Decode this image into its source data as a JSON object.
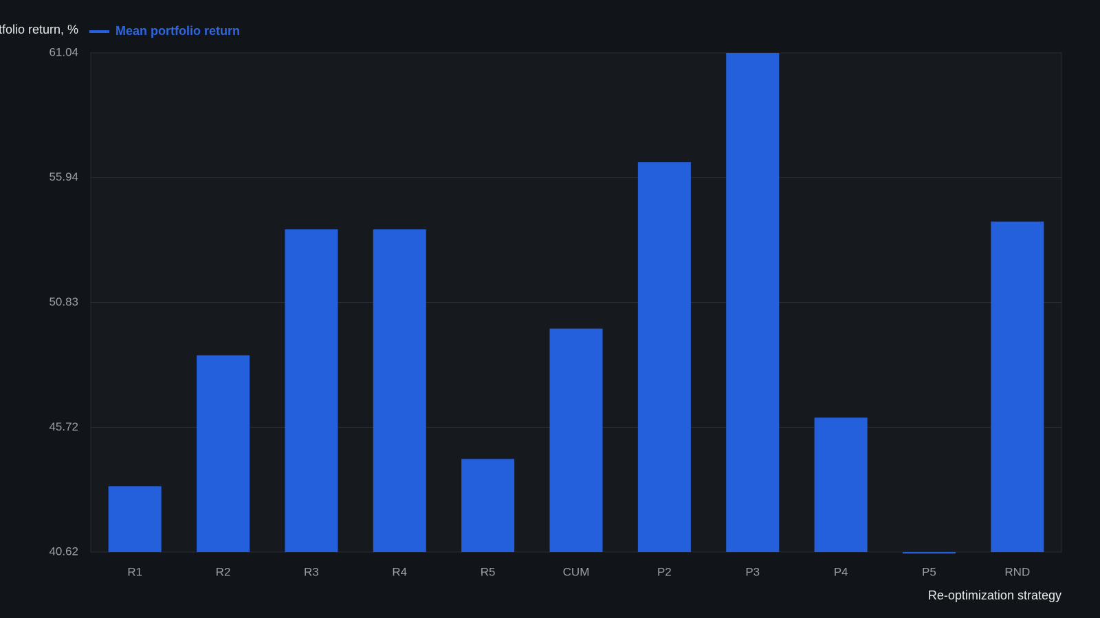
{
  "chart_data": {
    "type": "bar",
    "y_label": "Mean portfolio return, %",
    "x_label": "Re-optimization strategy",
    "categories": [
      "R1",
      "R2",
      "R3",
      "R4",
      "R5",
      "CUM",
      "P2",
      "P3",
      "P4",
      "P5",
      "RND"
    ],
    "series": [
      {
        "name": "Mean portfolio return",
        "color": "#245fdc",
        "values": [
          43.31,
          48.67,
          53.82,
          53.82,
          44.43,
          49.76,
          56.57,
          61.04,
          46.12,
          40.56,
          54.14
        ]
      }
    ],
    "ylim": [
      40.62,
      61.04
    ],
    "yticks": [
      40.62,
      45.72,
      50.83,
      55.94,
      61.04
    ],
    "grid": true
  }
}
